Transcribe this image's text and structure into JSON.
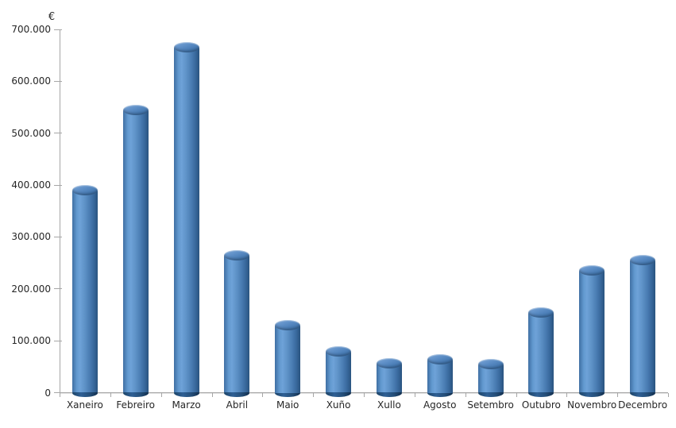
{
  "chart_data": {
    "type": "bar",
    "subtype": "3d-cylinder",
    "title": "",
    "xlabel": "",
    "ylabel": "€",
    "categories": [
      "Xaneiro",
      "Febreiro",
      "Marzo",
      "Abril",
      "Maio",
      "Xuño",
      "Xullo",
      "Agosto",
      "Setembro",
      "Outubro",
      "Novembro",
      "Decembro"
    ],
    "values": [
      390000,
      545000,
      665000,
      265000,
      130000,
      80000,
      57000,
      65000,
      55000,
      155000,
      235000,
      255000
    ],
    "ylim": [
      0,
      700000
    ],
    "ytick_step": 100000,
    "ytick_labels": [
      "0",
      "100.000",
      "200.000",
      "300.000",
      "400.000",
      "500.000",
      "600.000",
      "700.000"
    ],
    "grid": false,
    "legend": null,
    "colors": {
      "bar_base": "#4f81bd",
      "bar_highlight": "#6ea2d8",
      "bar_dark": "#2a547f",
      "bar_bottom_cap": "#1d4468",
      "axis": "#a6a6a6",
      "text": "#262626",
      "background": "#ffffff"
    }
  }
}
